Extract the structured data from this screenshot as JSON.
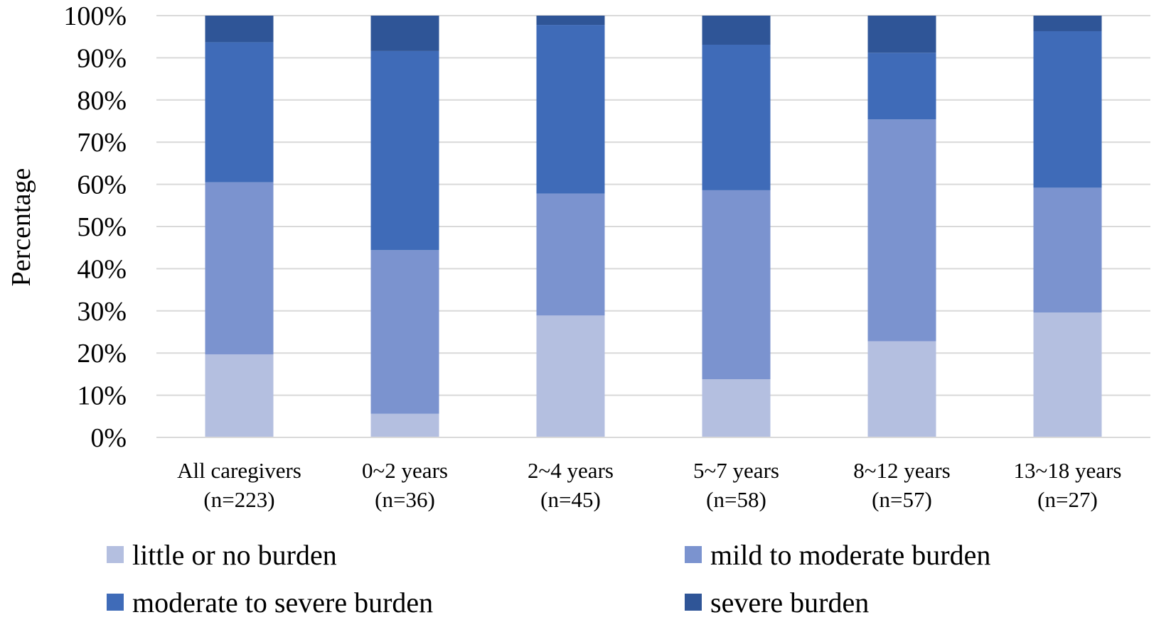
{
  "chart_data": {
    "type": "bar",
    "stacked": true,
    "percent_stacked": true,
    "title": "",
    "xlabel": "",
    "ylabel": "Percentage",
    "ylim": [
      0,
      100
    ],
    "y_ticks": [
      "0%",
      "10%",
      "20%",
      "30%",
      "40%",
      "50%",
      "60%",
      "70%",
      "80%",
      "90%",
      "100%"
    ],
    "grid": true,
    "legend_position": "bottom",
    "categories": [
      {
        "line1": "All caregivers",
        "line2": "(n=223)"
      },
      {
        "line1": "0~2 years",
        "line2": "(n=36)"
      },
      {
        "line1": "2~4 years",
        "line2": "(n=45)"
      },
      {
        "line1": "5~7 years",
        "line2": "(n=58)"
      },
      {
        "line1": "8~12 years",
        "line2": "(n=57)"
      },
      {
        "line1": "13~18 years",
        "line2": "(n=27)"
      }
    ],
    "series": [
      {
        "name": "little or no burden",
        "color": "#b4bfe0",
        "values": [
          19.7,
          5.6,
          28.9,
          13.8,
          22.8,
          29.6
        ]
      },
      {
        "name": "mild to moderate burden",
        "color": "#7b93cf",
        "values": [
          40.8,
          38.8,
          28.9,
          44.8,
          52.6,
          29.6
        ]
      },
      {
        "name": "moderate to severe burden",
        "color": "#3f6bb8",
        "values": [
          33.2,
          47.2,
          40.0,
          34.5,
          15.8,
          37.1
        ]
      },
      {
        "name": "severe burden",
        "color": "#2f5597",
        "values": [
          6.3,
          8.4,
          2.2,
          6.9,
          8.8,
          3.7
        ]
      }
    ]
  }
}
